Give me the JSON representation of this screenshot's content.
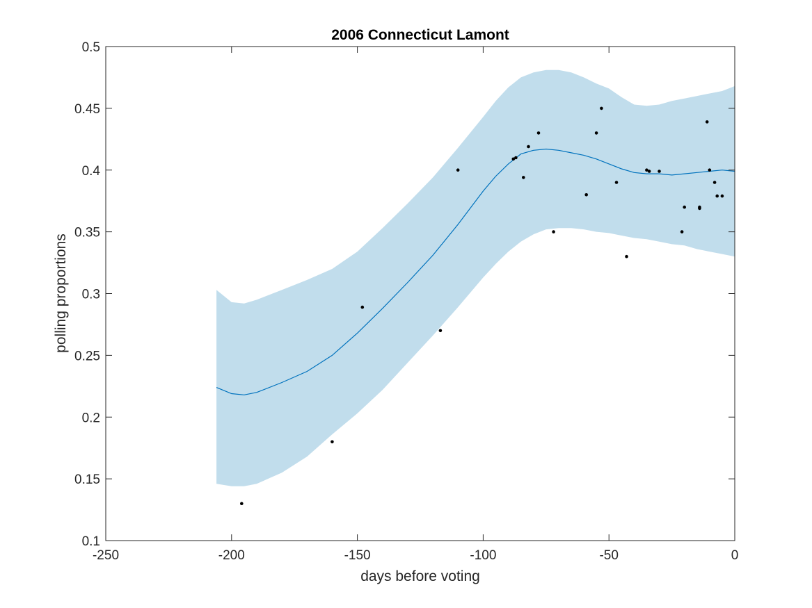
{
  "chart_data": {
    "type": "line",
    "title": "2006 Connecticut Lamont",
    "xlabel": "days before voting",
    "ylabel": "polling proportions",
    "xlim": [
      -250,
      0
    ],
    "ylim": [
      0.1,
      0.5
    ],
    "xticks": [
      -250,
      -200,
      -150,
      -100,
      -50,
      0
    ],
    "yticks": [
      0.1,
      0.15,
      0.2,
      0.25,
      0.3,
      0.35,
      0.4,
      0.45,
      0.5
    ],
    "xtick_labels": [
      "-250",
      "-200",
      "-150",
      "-100",
      "-50",
      "0"
    ],
    "ytick_labels": [
      "0.1",
      "0.15",
      "0.2",
      "0.25",
      "0.3",
      "0.35",
      "0.4",
      "0.45",
      "0.5"
    ],
    "grid": false,
    "colors": {
      "band": "#c1ddec",
      "line": "#0072bd",
      "points": "#000000",
      "axes": "#262626"
    },
    "series": [
      {
        "kind": "band",
        "x": [
          -206,
          -200,
          -195,
          -190,
          -180,
          -170,
          -160,
          -150,
          -140,
          -130,
          -120,
          -110,
          -100,
          -95,
          -90,
          -85,
          -80,
          -75,
          -70,
          -65,
          -60,
          -55,
          -50,
          -45,
          -40,
          -35,
          -30,
          -25,
          -20,
          -15,
          -10,
          -5,
          0
        ],
        "upper": [
          0.303,
          0.293,
          0.292,
          0.295,
          0.303,
          0.311,
          0.32,
          0.334,
          0.353,
          0.373,
          0.394,
          0.418,
          0.443,
          0.456,
          0.467,
          0.475,
          0.479,
          0.481,
          0.481,
          0.479,
          0.475,
          0.47,
          0.466,
          0.459,
          0.453,
          0.452,
          0.453,
          0.456,
          0.458,
          0.46,
          0.462,
          0.464,
          0.468
        ],
        "lower": [
          0.146,
          0.144,
          0.144,
          0.146,
          0.155,
          0.168,
          0.186,
          0.203,
          0.222,
          0.244,
          0.266,
          0.289,
          0.313,
          0.324,
          0.334,
          0.342,
          0.348,
          0.352,
          0.353,
          0.353,
          0.352,
          0.35,
          0.349,
          0.347,
          0.345,
          0.344,
          0.342,
          0.34,
          0.339,
          0.336,
          0.334,
          0.332,
          0.33
        ]
      },
      {
        "kind": "line",
        "x": [
          -206,
          -200,
          -195,
          -190,
          -180,
          -170,
          -160,
          -150,
          -140,
          -130,
          -120,
          -110,
          -100,
          -95,
          -90,
          -85,
          -80,
          -75,
          -70,
          -65,
          -60,
          -55,
          -50,
          -45,
          -40,
          -35,
          -30,
          -25,
          -20,
          -15,
          -10,
          -5,
          0
        ],
        "y": [
          0.224,
          0.219,
          0.218,
          0.22,
          0.228,
          0.237,
          0.25,
          0.268,
          0.288,
          0.309,
          0.331,
          0.356,
          0.383,
          0.395,
          0.405,
          0.413,
          0.416,
          0.417,
          0.416,
          0.414,
          0.412,
          0.409,
          0.405,
          0.401,
          0.398,
          0.397,
          0.397,
          0.396,
          0.397,
          0.398,
          0.399,
          0.4,
          0.399
        ]
      },
      {
        "kind": "scatter",
        "points": [
          [
            -196,
            0.13
          ],
          [
            -160,
            0.18
          ],
          [
            -148,
            0.289
          ],
          [
            -117,
            0.27
          ],
          [
            -110,
            0.4
          ],
          [
            -88,
            0.409
          ],
          [
            -87,
            0.41
          ],
          [
            -84,
            0.394
          ],
          [
            -82,
            0.419
          ],
          [
            -78,
            0.43
          ],
          [
            -72,
            0.35
          ],
          [
            -59,
            0.38
          ],
          [
            -55,
            0.43
          ],
          [
            -53,
            0.45
          ],
          [
            -47,
            0.39
          ],
          [
            -43,
            0.33
          ],
          [
            -35,
            0.4
          ],
          [
            -34,
            0.399
          ],
          [
            -30,
            0.399
          ],
          [
            -21,
            0.35
          ],
          [
            -20,
            0.37
          ],
          [
            -14,
            0.37
          ],
          [
            -14,
            0.369
          ],
          [
            -11,
            0.439
          ],
          [
            -10,
            0.4
          ],
          [
            -8,
            0.39
          ],
          [
            -7,
            0.379
          ],
          [
            -5,
            0.379
          ]
        ]
      }
    ]
  }
}
